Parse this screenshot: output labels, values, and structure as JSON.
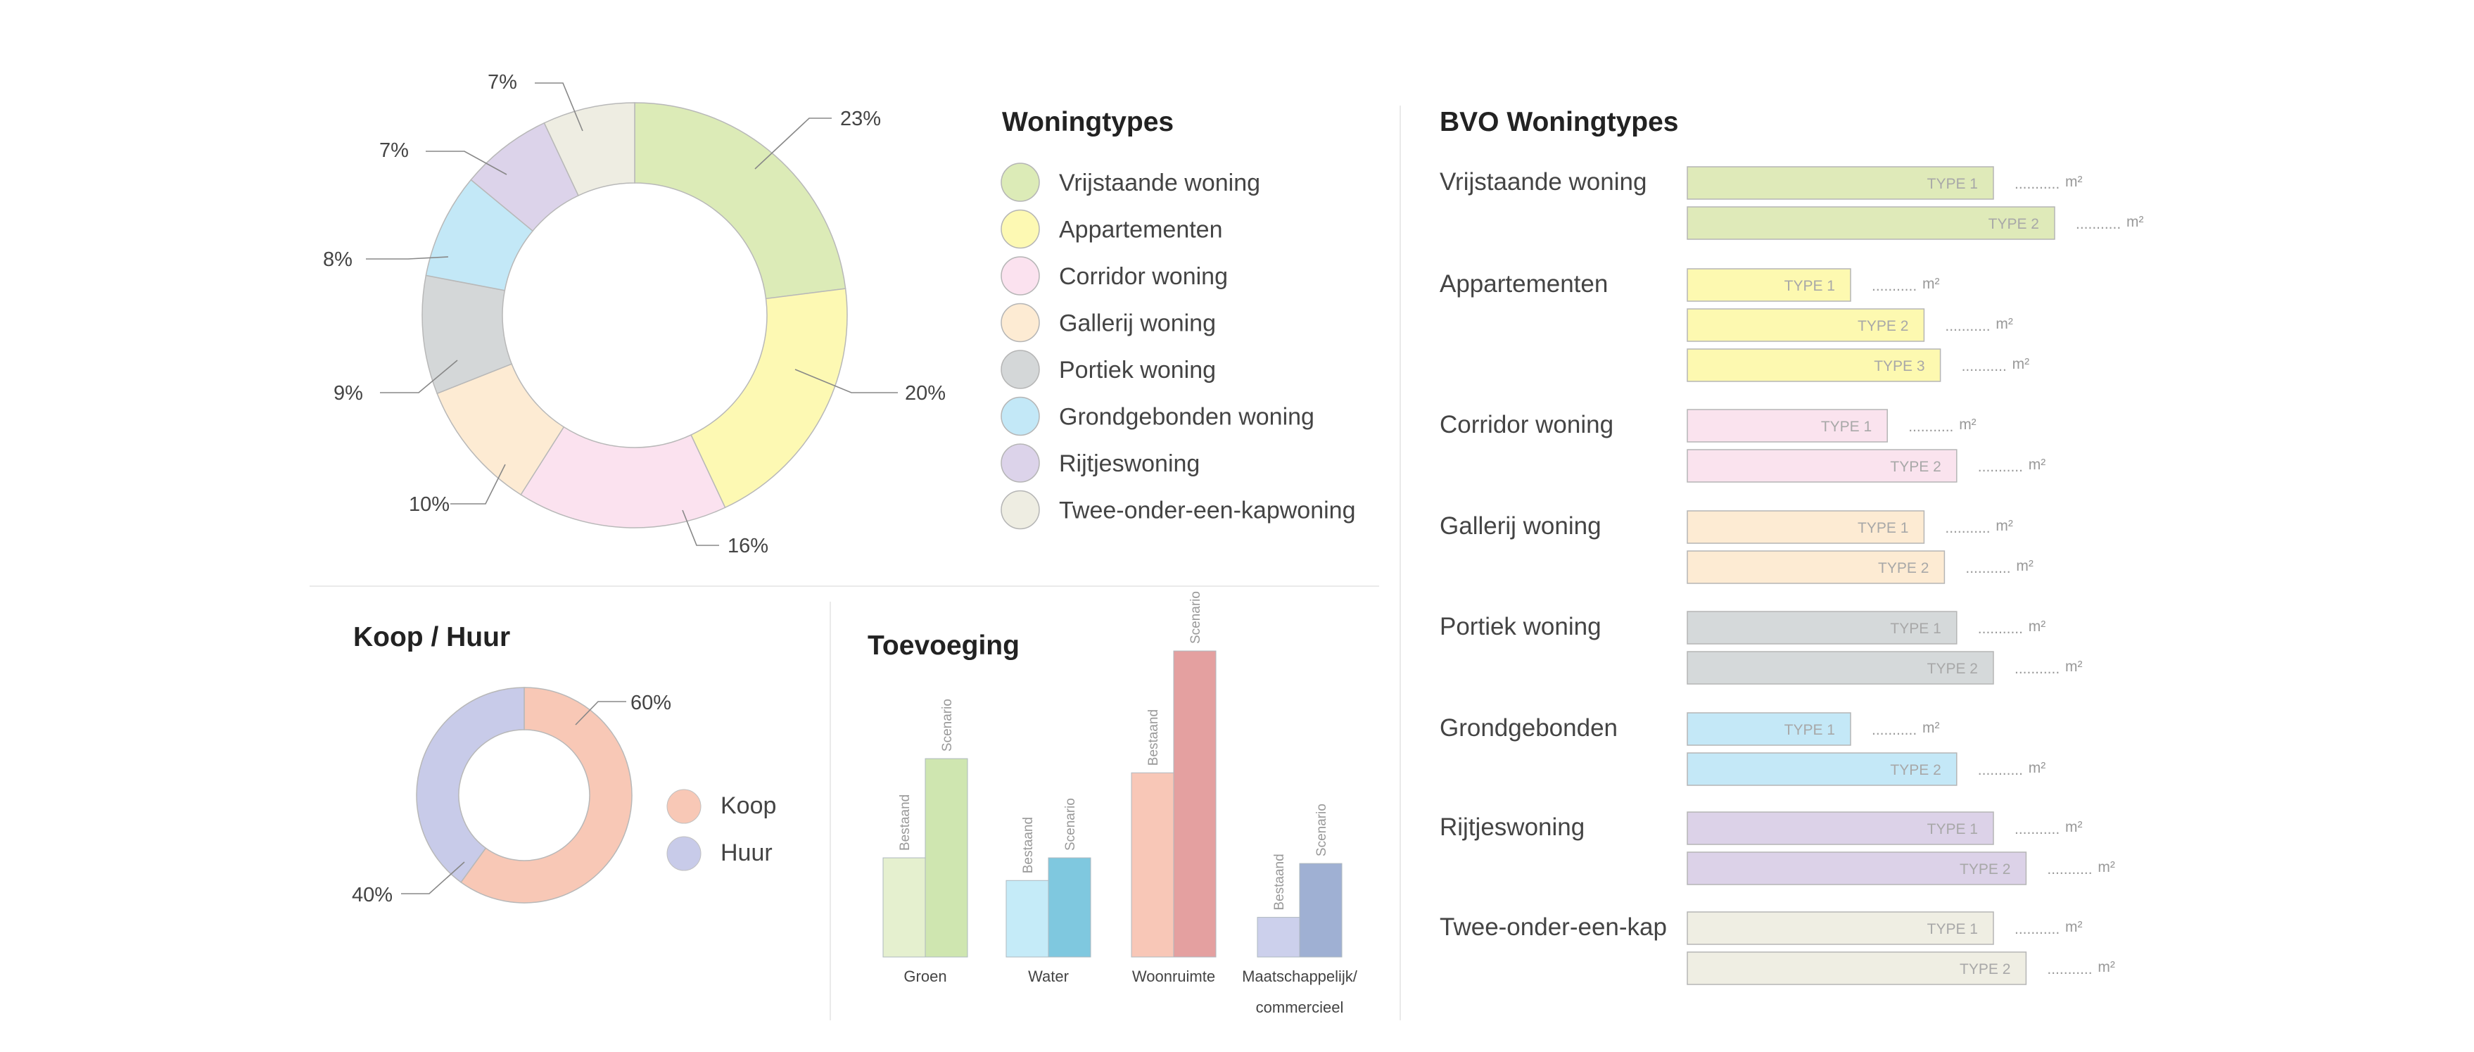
{
  "woningtypes": {
    "title": "Woningtypes",
    "chart_data": {
      "type": "pie",
      "title": "Woningtypes",
      "slices": [
        {
          "label": "Vrijstaande woning",
          "value": 23,
          "pct_label": "23%",
          "color": "#dcebb7"
        },
        {
          "label": "Appartementen",
          "value": 20,
          "pct_label": "20%",
          "color": "#fdf9b3"
        },
        {
          "label": "Corridor woning",
          "value": 16,
          "pct_label": "16%",
          "color": "#fbe2ef"
        },
        {
          "label": "Gallerij  woning",
          "value": 10,
          "pct_label": "10%",
          "color": "#fdebd3"
        },
        {
          "label": "Portiek woning",
          "value": 9,
          "pct_label": "9%",
          "color": "#d4d7d8"
        },
        {
          "label": "Grondgebonden woning",
          "value": 8,
          "pct_label": "8%",
          "color": "#c3e8f7"
        },
        {
          "label": "Rijtjeswoning",
          "value": 7,
          "pct_label": "7%",
          "color": "#dcd3ea"
        },
        {
          "label": "Twee-onder-een-kapwoning",
          "value": 7,
          "pct_label": "7%",
          "color": "#eeede2"
        }
      ]
    }
  },
  "koop_huur": {
    "title": "Koop / Huur",
    "chart_data": {
      "type": "pie",
      "title": "Koop / Huur",
      "slices": [
        {
          "label": "Koop",
          "value": 60,
          "pct_label": "60%",
          "color": "#f8c8b6"
        },
        {
          "label": "Huur",
          "value": 40,
          "pct_label": "40%",
          "color": "#c8cbe9"
        }
      ]
    }
  },
  "toevoeging": {
    "title": "Toevoeging",
    "chart_data": {
      "type": "bar",
      "title": "Toevoeging",
      "categories": [
        "Groen",
        "Water",
        "Woonruimte",
        "Maatschappelijk/ commercieel"
      ],
      "category_lines": [
        [
          "Groen"
        ],
        [
          "Water"
        ],
        [
          "Woonruimte"
        ],
        [
          "Maatschappelijk/",
          "commercieel"
        ]
      ],
      "series": [
        {
          "name": "Bestaand",
          "values": [
            3.5,
            2.7,
            6.5,
            1.4
          ]
        },
        {
          "name": "Scenario",
          "values": [
            7.0,
            3.5,
            10.8,
            3.3
          ]
        }
      ],
      "colors": [
        {
          "Bestaand": "#e5f0cf",
          "Scenario": "#cfe6b0"
        },
        {
          "Bestaand": "#c5ebf8",
          "Scenario": "#7fc8df"
        },
        {
          "Bestaand": "#f8c7b7",
          "Scenario": "#e4a0a0"
        },
        {
          "Bestaand": "#ccd0ec",
          "Scenario": "#9fb0d3"
        }
      ],
      "ylim": [
        0,
        11
      ]
    }
  },
  "bvo": {
    "title": "BVO Woningtypes",
    "unit": "m²",
    "dots": "...........",
    "chart_data": {
      "type": "bar",
      "orientation": "horizontal",
      "title": "BVO Woningtypes",
      "groups": [
        {
          "label": "Vrijstaande woning",
          "color": "#dfeab9",
          "bars": [
            {
              "label": "TYPE 1",
              "value": 7.5
            },
            {
              "label": "TYPE 2",
              "value": 9.0
            }
          ]
        },
        {
          "label": "Appartementen",
          "color": "#fdf9b0",
          "bars": [
            {
              "label": "TYPE 1",
              "value": 4.0
            },
            {
              "label": "TYPE 2",
              "value": 5.8
            },
            {
              "label": "TYPE 3",
              "value": 6.2
            }
          ]
        },
        {
          "label": "Corridor woning",
          "color": "#fae3ee",
          "bars": [
            {
              "label": "TYPE 1",
              "value": 4.9
            },
            {
              "label": "TYPE 2",
              "value": 6.6
            }
          ]
        },
        {
          "label": "Gallerij woning",
          "color": "#fdebd3",
          "bars": [
            {
              "label": "TYPE 1",
              "value": 5.8
            },
            {
              "label": "TYPE 2",
              "value": 6.3
            }
          ]
        },
        {
          "label": "Portiek woning",
          "color": "#d5d9da",
          "bars": [
            {
              "label": "TYPE 1",
              "value": 6.6
            },
            {
              "label": "TYPE 2",
              "value": 7.5
            }
          ]
        },
        {
          "label": "Grondgebonden",
          "color": "#c4e8f7",
          "bars": [
            {
              "label": "TYPE 1",
              "value": 4.0
            },
            {
              "label": "TYPE 2",
              "value": 6.6
            }
          ]
        },
        {
          "label": "Rijtjeswoning",
          "color": "#dcd2e8",
          "bars": [
            {
              "label": "TYPE 1",
              "value": 7.5
            },
            {
              "label": "TYPE 2",
              "value": 8.3
            }
          ]
        },
        {
          "label": "Twee-onder-een-kap",
          "color": "#efeee3",
          "bars": [
            {
              "label": "TYPE 1",
              "value": 7.5
            },
            {
              "label": "TYPE 2",
              "value": 8.3
            }
          ]
        }
      ]
    }
  }
}
